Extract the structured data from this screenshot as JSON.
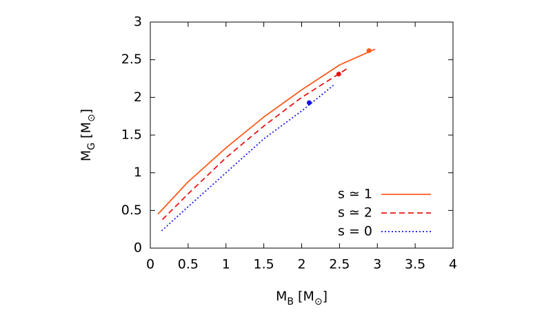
{
  "chart_data": {
    "type": "line",
    "xlabel": [
      "M",
      "B",
      " [M",
      "⊙",
      "]"
    ],
    "ylabel": [
      "M",
      "G",
      " [M",
      "⊙",
      "]"
    ],
    "xlim": [
      0,
      4
    ],
    "xticks": [
      0,
      0.5,
      1,
      1.5,
      2,
      2.5,
      3,
      3.5,
      4
    ],
    "ylim": [
      0,
      3
    ],
    "yticks": [
      0,
      0.5,
      1,
      1.5,
      2,
      2.5,
      3
    ],
    "grid": false,
    "legend": "lower right",
    "series": [
      {
        "name": "s ≃ 1",
        "color": "#ff5a1a",
        "dash": "solid",
        "x": [
          0.1,
          0.5,
          1.0,
          1.5,
          2.0,
          2.5,
          2.97
        ],
        "values": [
          0.45,
          0.88,
          1.33,
          1.74,
          2.1,
          2.43,
          2.64
        ],
        "marker_x": 2.89,
        "marker_y": 2.62
      },
      {
        "name": "s ≃ 2",
        "color": "#ee1111",
        "dash": "dashed",
        "x": [
          0.16,
          0.5,
          1.0,
          1.5,
          2.0,
          2.63
        ],
        "values": [
          0.38,
          0.72,
          1.2,
          1.62,
          2.0,
          2.4
        ],
        "marker_x": 2.49,
        "marker_y": 2.31
      },
      {
        "name": "s = 0",
        "color": "#1111ee",
        "dash": "dotted",
        "x": [
          0.15,
          0.5,
          1.0,
          1.5,
          2.0,
          2.42
        ],
        "values": [
          0.23,
          0.55,
          1.0,
          1.45,
          1.82,
          2.16
        ],
        "marker_x": 2.1,
        "marker_y": 1.93
      }
    ]
  }
}
